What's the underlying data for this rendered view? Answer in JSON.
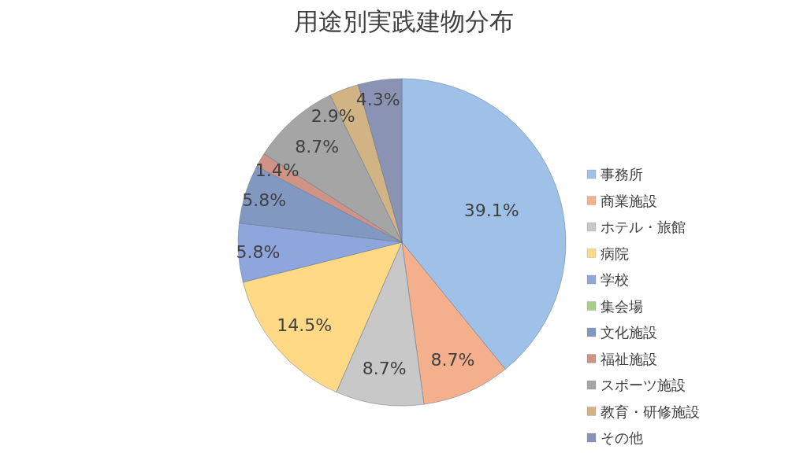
{
  "chart_data": {
    "type": "pie",
    "title": "用途別実践建物分布",
    "categories": [
      "事務所",
      "商業施設",
      "ホテル・旅館",
      "病院",
      "学校",
      "集会場",
      "文化施設",
      "福祉施設",
      "スポーツ施設",
      "教育・研修施設",
      "その他"
    ],
    "values": [
      39.1,
      8.7,
      8.7,
      14.5,
      5.8,
      0,
      5.8,
      1.4,
      8.7,
      2.9,
      4.3
    ],
    "value_labels": [
      "39.1%",
      "8.7%",
      "8.7%",
      "14.5%",
      "5.8%",
      null,
      "5.8%",
      "1.4%",
      "8.7%",
      "2.9%",
      "4.3%"
    ],
    "colors": [
      "#9fc1e7",
      "#f4b08c",
      "#c8c8c8",
      "#ffd985",
      "#8fa6dc",
      "#a6cf8c",
      "#8199c0",
      "#cf9486",
      "#a5a5a5",
      "#d1b384",
      "#8b93b5"
    ],
    "legend": "right"
  }
}
